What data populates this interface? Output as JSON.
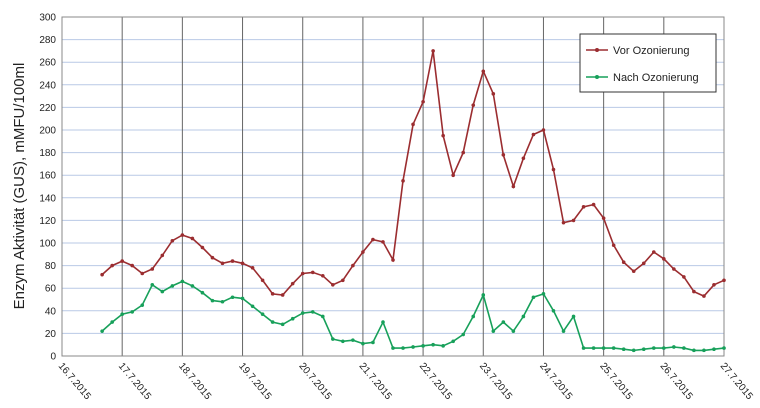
{
  "chart_data": {
    "type": "line",
    "y_label": "Enzym Aktivität (GUS), mMFU/100ml",
    "x": [
      "2015-07-16T16:00",
      "2015-07-16T20:00",
      "2015-07-17T00:00",
      "2015-07-17T04:00",
      "2015-07-17T08:00",
      "2015-07-17T12:00",
      "2015-07-17T16:00",
      "2015-07-17T20:00",
      "2015-07-18T00:00",
      "2015-07-18T04:00",
      "2015-07-18T08:00",
      "2015-07-18T12:00",
      "2015-07-18T16:00",
      "2015-07-18T20:00",
      "2015-07-19T00:00",
      "2015-07-19T04:00",
      "2015-07-19T08:00",
      "2015-07-19T12:00",
      "2015-07-19T16:00",
      "2015-07-19T20:00",
      "2015-07-20T00:00",
      "2015-07-20T04:00",
      "2015-07-20T08:00",
      "2015-07-20T12:00",
      "2015-07-20T16:00",
      "2015-07-20T20:00",
      "2015-07-21T00:00",
      "2015-07-21T04:00",
      "2015-07-21T08:00",
      "2015-07-21T12:00",
      "2015-07-21T16:00",
      "2015-07-21T20:00",
      "2015-07-22T00:00",
      "2015-07-22T04:00",
      "2015-07-22T08:00",
      "2015-07-22T12:00",
      "2015-07-22T16:00",
      "2015-07-22T20:00",
      "2015-07-23T00:00",
      "2015-07-23T04:00",
      "2015-07-23T08:00",
      "2015-07-23T12:00",
      "2015-07-23T16:00",
      "2015-07-23T20:00",
      "2015-07-24T00:00",
      "2015-07-24T04:00",
      "2015-07-24T08:00",
      "2015-07-24T12:00",
      "2015-07-24T16:00",
      "2015-07-24T20:00",
      "2015-07-25T00:00",
      "2015-07-25T04:00",
      "2015-07-25T08:00",
      "2015-07-25T12:00",
      "2015-07-25T16:00",
      "2015-07-25T20:00",
      "2015-07-26T00:00",
      "2015-07-26T04:00",
      "2015-07-26T08:00",
      "2015-07-26T12:00",
      "2015-07-26T16:00",
      "2015-07-26T20:00",
      "2015-07-27T00:00"
    ],
    "series": [
      {
        "name": "Vor Ozonierung",
        "color": "#9b2d30",
        "values": [
          72,
          80,
          84,
          80,
          73,
          77,
          89,
          102,
          107,
          104,
          96,
          87,
          82,
          84,
          82,
          78,
          67,
          55,
          54,
          64,
          73,
          74,
          71,
          63,
          67,
          80,
          92,
          103,
          101,
          85,
          155,
          205,
          225,
          270,
          195,
          160,
          180,
          222,
          252,
          232,
          178,
          150,
          175,
          196,
          200,
          165,
          118,
          120,
          132,
          134,
          122,
          98,
          83,
          75,
          82,
          92,
          86,
          77,
          70,
          57,
          53,
          63,
          67
        ]
      },
      {
        "name": "Nach Ozonierung",
        "color": "#17a05a",
        "values": [
          22,
          30,
          37,
          39,
          45,
          63,
          57,
          62,
          66,
          62,
          56,
          49,
          48,
          52,
          51,
          44,
          37,
          30,
          28,
          33,
          38,
          39,
          35,
          15,
          13,
          14,
          11,
          12,
          30,
          7,
          7,
          8,
          9,
          10,
          9,
          13,
          19,
          35,
          54,
          22,
          30,
          22,
          35,
          52,
          55,
          40,
          22,
          35,
          7,
          7,
          7,
          7,
          6,
          5,
          6,
          7,
          7,
          8,
          7,
          5,
          5,
          6,
          7
        ]
      }
    ],
    "xlim": [
      "2015-07-16",
      "2015-07-27"
    ],
    "xticks": [
      {
        "value": "2015-07-16",
        "label": "16.7.2015"
      },
      {
        "value": "2015-07-17",
        "label": "17.7.2015"
      },
      {
        "value": "2015-07-18",
        "label": "18.7.2015"
      },
      {
        "value": "2015-07-19",
        "label": "19.7.2015"
      },
      {
        "value": "2015-07-20",
        "label": "20.7.2015"
      },
      {
        "value": "2015-07-21",
        "label": "21.7.2015"
      },
      {
        "value": "2015-07-22",
        "label": "22.7.2015"
      },
      {
        "value": "2015-07-23",
        "label": "23.7.2015"
      },
      {
        "value": "2015-07-24",
        "label": "24.7.2015"
      },
      {
        "value": "2015-07-25",
        "label": "25.7.2015"
      },
      {
        "value": "2015-07-26",
        "label": "26.7.2015"
      },
      {
        "value": "2015-07-27",
        "label": "27.7.2015"
      }
    ],
    "ylim": [
      0,
      300
    ],
    "yticks": [
      0,
      20,
      40,
      60,
      80,
      100,
      120,
      140,
      160,
      180,
      200,
      220,
      240,
      260,
      280,
      300
    ],
    "grid": true,
    "legend": "upper right"
  }
}
